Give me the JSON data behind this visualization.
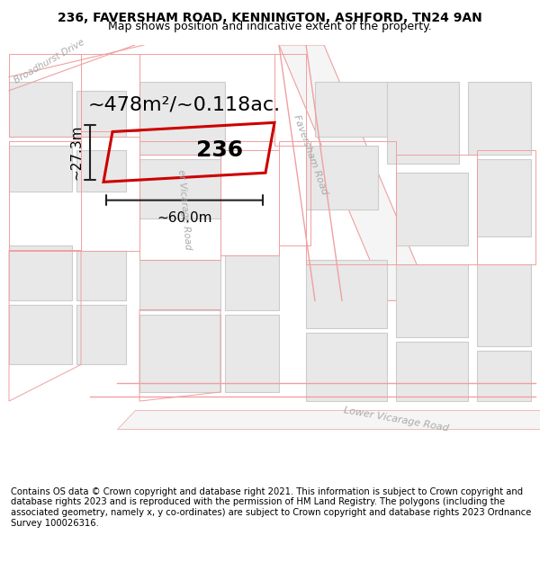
{
  "title": "236, FAVERSHAM ROAD, KENNINGTON, ASHFORD, TN24 9AN",
  "subtitle": "Map shows position and indicative extent of the property.",
  "footer": "Contains OS data © Crown copyright and database right 2021. This information is subject to Crown copyright and database rights 2023 and is reproduced with the permission of HM Land Registry. The polygons (including the associated geometry, namely x, y co-ordinates) are subject to Crown copyright and database rights 2023 Ordnance Survey 100026316.",
  "bg_color": "#f5f5f5",
  "map_bg": "#f0eeee",
  "building_fill": "#e8e8e8",
  "building_edge": "#cccccc",
  "highlight_fill": "none",
  "highlight_edge": "#cc0000",
  "road_label_color": "#aaaaaa",
  "dim_line_color": "#222222",
  "area_text": "~478m²/~0.118ac.",
  "label_236": "236",
  "dim_width": "~60.0m",
  "dim_height": "~27.3m",
  "title_fontsize": 10,
  "subtitle_fontsize": 9,
  "footer_fontsize": 7.2,
  "area_fontsize": 16,
  "label_fontsize": 18,
  "dim_fontsize": 11,
  "road_label_fontsize": 8
}
